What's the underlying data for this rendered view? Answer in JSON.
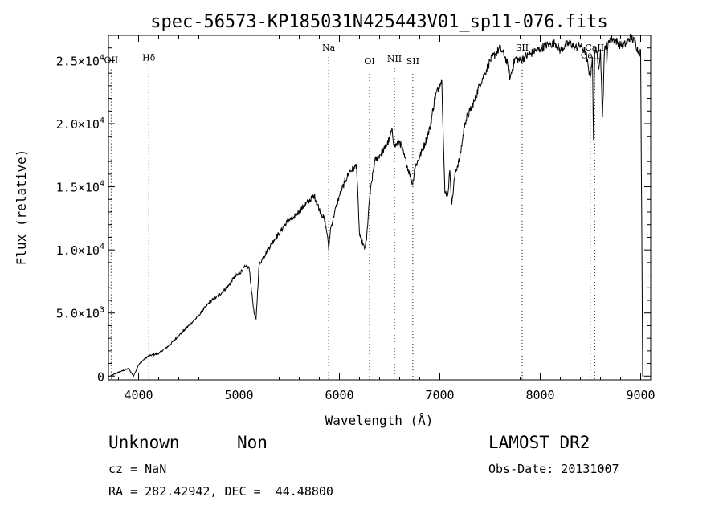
{
  "chart_data": {
    "type": "line",
    "title": "spec-56573-KP185031N425443V01_sp11-076.fits",
    "xlabel": "Wavelength (Å)",
    "ylabel": "Flux (relative)",
    "xlim": [
      3700,
      9100
    ],
    "ylim": [
      -300,
      27000
    ],
    "grid": false,
    "x_ticks": [
      {
        "value": 4000,
        "label": "4000"
      },
      {
        "value": 5000,
        "label": "5000"
      },
      {
        "value": 6000,
        "label": "6000"
      },
      {
        "value": 7000,
        "label": "7000"
      },
      {
        "value": 8000,
        "label": "8000"
      },
      {
        "value": 9000,
        "label": "9000"
      }
    ],
    "y_ticks": [
      {
        "value": 0,
        "mant": "0",
        "exp": ""
      },
      {
        "value": 5000,
        "mant": "5.0×10",
        "exp": "3"
      },
      {
        "value": 10000,
        "mant": "1.0×10",
        "exp": "4"
      },
      {
        "value": 15000,
        "mant": "1.5×10",
        "exp": "4"
      },
      {
        "value": 20000,
        "mant": "2.0×10",
        "exp": "4"
      },
      {
        "value": 25000,
        "mant": "2.5×10",
        "exp": "4"
      }
    ],
    "lines": [
      {
        "label": "OII",
        "wavelength": 3727,
        "label_y": 24800
      },
      {
        "label": "Hδ",
        "wavelength": 4102,
        "label_y": 25000
      },
      {
        "label": "Na",
        "wavelength": 5893,
        "label_y": 25800
      },
      {
        "label": "OI",
        "wavelength": 6300,
        "label_y": 24700
      },
      {
        "label": "NII",
        "wavelength": 6548,
        "label_y": 24900
      },
      {
        "label": "SII",
        "wavelength": 6731,
        "label_y": 24700
      },
      {
        "label": "SII",
        "wavelength": 7820,
        "label_y": 25800
      },
      {
        "label": "CaII",
        "wavelength": 8498,
        "label_y": 25200
      },
      {
        "label": "CaII",
        "wavelength": 8542,
        "label_y": 25800
      }
    ],
    "series": [
      {
        "x": [
          3720,
          3800,
          3900,
          3950,
          4000,
          4050,
          4100,
          4200,
          4300,
          4400,
          4500,
          4600,
          4700,
          4800,
          4850,
          4900,
          4950,
          5000,
          5050,
          5100,
          5150,
          5170,
          5200,
          5250,
          5300,
          5350,
          5400,
          5450,
          5500,
          5550,
          5600,
          5650,
          5700,
          5750,
          5800,
          5850,
          5880,
          5893,
          5910,
          5950,
          6000,
          6050,
          6100,
          6150,
          6170,
          6200,
          6250,
          6270,
          6300,
          6350,
          6400,
          6450,
          6500,
          6520,
          6550,
          6600,
          6650,
          6700,
          6730,
          6750,
          6800,
          6850,
          6900,
          6950,
          7000,
          7020,
          7050,
          7080,
          7100,
          7120,
          7150,
          7200,
          7250,
          7300,
          7350,
          7400,
          7450,
          7500,
          7550,
          7600,
          7620,
          7650,
          7680,
          7700,
          7750,
          7800,
          7850,
          7900,
          7950,
          8000,
          8050,
          8100,
          8150,
          8200,
          8250,
          8300,
          8350,
          8400,
          8450,
          8480,
          8498,
          8520,
          8530,
          8542,
          8555,
          8580,
          8600,
          8620,
          8640,
          8660,
          8662,
          8680,
          8700,
          8750,
          8800,
          8850,
          8900,
          8950,
          8980,
          9000,
          9010,
          9020,
          9030
        ],
        "y": [
          0,
          300,
          600,
          0,
          900,
          1300,
          1600,
          1800,
          2400,
          3200,
          4000,
          4800,
          5800,
          6400,
          6800,
          7200,
          7800,
          8100,
          8600,
          8600,
          5000,
          4500,
          8800,
          9500,
          10200,
          10800,
          11300,
          11900,
          12400,
          12500,
          13100,
          13500,
          13900,
          14300,
          13200,
          12400,
          11200,
          10000,
          11600,
          12900,
          14300,
          15300,
          16200,
          16500,
          16800,
          11200,
          10100,
          10800,
          14100,
          17000,
          17500,
          18000,
          18800,
          19500,
          18200,
          18600,
          17300,
          16000,
          15200,
          16500,
          17400,
          18400,
          19600,
          22000,
          23200,
          23400,
          14500,
          14400,
          16300,
          13600,
          16000,
          17300,
          20100,
          21000,
          21900,
          23200,
          24000,
          25000,
          25500,
          26000,
          25700,
          25300,
          24500,
          23600,
          25200,
          25000,
          25300,
          25500,
          25800,
          25900,
          26200,
          26300,
          26400,
          25800,
          26200,
          26400,
          26000,
          26200,
          25700,
          24400,
          23700,
          25300,
          18700,
          25800,
          26100,
          24300,
          25900,
          20500,
          25800,
          26500,
          24800,
          26600,
          26800,
          26600,
          26200,
          26300,
          26900,
          26400,
          25600,
          25800,
          13000,
          0,
          0
        ]
      }
    ]
  },
  "info": {
    "class_label": "Unknown",
    "subclass_label": "Non",
    "cz_text": "cz = NaN",
    "radec_text": "RA = 282.42942, DEC =  44.48800",
    "survey_label": "LAMOST DR2",
    "obs_date_text": "Obs-Date: 20131007"
  }
}
